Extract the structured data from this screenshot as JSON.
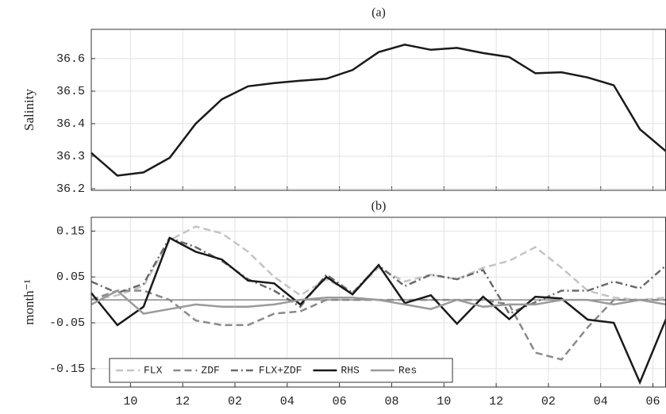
{
  "chart_data": [
    {
      "type": "line",
      "title": "(a)",
      "ylabel": "Salinity",
      "x": [
        8.5,
        9.5,
        10.5,
        11.5,
        12.5,
        13.5,
        14.5,
        15.5,
        16.5,
        17.5,
        18.5,
        19.5,
        20.5,
        21.5,
        22.5,
        23.5,
        24.5,
        25.5,
        26.5,
        27.5,
        28.5,
        29.5,
        30.5
      ],
      "series": [
        {
          "color": "#1a1a1a",
          "style": "solid",
          "values": [
            36.31,
            36.24,
            36.25,
            36.295,
            36.4,
            36.475,
            36.515,
            36.525,
            36.532,
            36.538,
            36.565,
            36.62,
            36.643,
            36.627,
            36.633,
            36.617,
            36.605,
            36.555,
            36.558,
            36.542,
            36.518,
            36.383,
            36.315
          ]
        }
      ],
      "xlim": [
        8.5,
        30.5
      ],
      "ylim": [
        36.195,
        36.69
      ],
      "yticks": [
        36.2,
        36.3,
        36.4,
        36.5,
        36.6
      ],
      "grid": true
    },
    {
      "type": "line",
      "title": "(b)",
      "ylabel": "month⁻¹",
      "x": [
        8.5,
        9.5,
        10.5,
        11.5,
        12.5,
        13.5,
        14.5,
        15.5,
        16.5,
        17.5,
        18.5,
        19.5,
        20.5,
        21.5,
        22.5,
        23.5,
        24.5,
        25.5,
        26.5,
        27.5,
        28.5,
        29.5,
        30.5
      ],
      "series": [
        {
          "name": "FLX",
          "color": "#c4c4c4",
          "style": "dashed",
          "values": [
            0.0,
            0.01,
            0.03,
            0.13,
            0.16,
            0.145,
            0.105,
            0.05,
            0.01,
            0.045,
            0.015,
            0.07,
            0.04,
            0.055,
            0.045,
            0.07,
            0.085,
            0.115,
            0.07,
            0.02,
            0.005,
            0.0,
            0.005
          ]
        },
        {
          "name": "ZDF",
          "color": "#8a8a8a",
          "style": "dashed",
          "values": [
            0.0,
            0.02,
            0.02,
            0.0,
            -0.045,
            -0.055,
            -0.055,
            -0.03,
            -0.025,
            0.0,
            0.0,
            0.0,
            0.0,
            0.0,
            0.0,
            0.0,
            -0.01,
            -0.115,
            -0.13,
            -0.06,
            0.0,
            0.0,
            0.0
          ]
        },
        {
          "name": "FLX+ZDF",
          "color": "#6a6a6a",
          "style": "dashdot",
          "values": [
            0.04,
            0.015,
            0.035,
            0.135,
            0.115,
            0.085,
            0.045,
            0.02,
            -0.015,
            0.055,
            0.015,
            0.075,
            0.03,
            0.055,
            0.045,
            0.065,
            -0.03,
            -0.005,
            0.02,
            0.02,
            0.04,
            0.025,
            0.075
          ]
        },
        {
          "name": "RHS",
          "color": "#1a1a1a",
          "style": "solid",
          "values": [
            0.015,
            -0.055,
            -0.015,
            0.135,
            0.105,
            0.088,
            0.042,
            0.036,
            -0.01,
            0.05,
            0.012,
            0.076,
            -0.007,
            0.01,
            -0.052,
            0.007,
            -0.042,
            0.007,
            0.003,
            -0.043,
            -0.05,
            -0.18,
            -0.042
          ]
        },
        {
          "name": "Res",
          "color": "#9a9a9a",
          "style": "solid",
          "values": [
            -0.01,
            0.02,
            -0.03,
            -0.02,
            -0.01,
            -0.015,
            -0.015,
            -0.01,
            0.0,
            0.005,
            0.005,
            0.0,
            -0.01,
            -0.02,
            0.0,
            -0.015,
            -0.01,
            -0.01,
            0.0,
            0.0,
            -0.01,
            0.0,
            -0.01
          ]
        }
      ],
      "xlim": [
        8.5,
        30.5
      ],
      "ylim": [
        -0.19,
        0.18
      ],
      "xticks": [
        {
          "value": 10,
          "label": "10"
        },
        {
          "value": 12,
          "label": "12"
        },
        {
          "value": 14,
          "label": "02"
        },
        {
          "value": 16,
          "label": "04"
        },
        {
          "value": 18,
          "label": "06"
        },
        {
          "value": 20,
          "label": "08"
        },
        {
          "value": 22,
          "label": "10"
        },
        {
          "value": 24,
          "label": "12"
        },
        {
          "value": 26,
          "label": "02"
        },
        {
          "value": 28,
          "label": "04"
        },
        {
          "value": 30,
          "label": "06"
        }
      ],
      "yticks": [
        0.15,
        0.05,
        -0.05,
        -0.15
      ],
      "zero_line": true,
      "grid": true,
      "legend": "lower left"
    }
  ]
}
